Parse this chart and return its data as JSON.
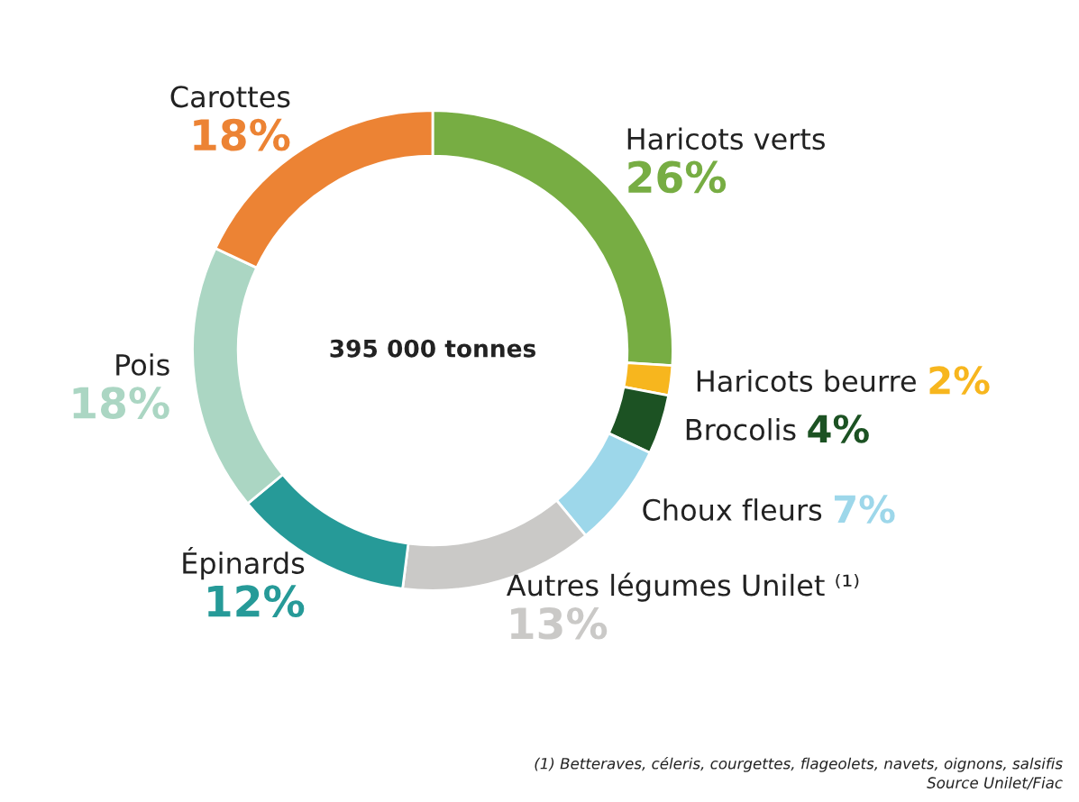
{
  "chart_data": {
    "type": "donut",
    "categories": [
      "Haricots verts",
      "Haricots beurre",
      "Brocolis",
      "Choux fleurs",
      "Autres légumes Unilet ⁽¹⁾",
      "Épinards",
      "Pois",
      "Carottes"
    ],
    "values": [
      26,
      2,
      4,
      7,
      13,
      12,
      18,
      18
    ],
    "value_labels": [
      "26%",
      "2%",
      "4%",
      "7%",
      "13%",
      "12%",
      "18%",
      "18%"
    ],
    "colors": [
      "#77ad43",
      "#f7b61e",
      "#1c5223",
      "#9dd7ea",
      "#cac9c7",
      "#269a98",
      "#abd6c3",
      "#ec8334"
    ],
    "annotations": [
      "395 000 tonnes",
      "(1) Betteraves, céleris, courgettes, flageolets, navets, oignons, salsifis",
      "Source Unilet/Fiac"
    ]
  }
}
